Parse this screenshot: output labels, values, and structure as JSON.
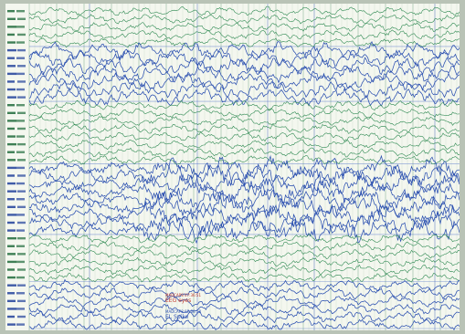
{
  "recording": {
    "colors": {
      "paper": "#f4f7ef",
      "green_trace": "#2f8a52",
      "blue_trace": "#2a4fb0",
      "grid_minor": "#cfe0cf",
      "grid_major": "#9fbfa8",
      "label_green": "#1d6a3a",
      "label_blue": "#1e3f9a",
      "annotation_red": "#c23a2c",
      "annotation_blue": "#2a4fb0"
    },
    "groups": [
      {
        "color": "green",
        "count": 5
      },
      {
        "color": "blue",
        "count": 7
      },
      {
        "color": "green",
        "count": 8
      },
      {
        "color": "blue",
        "count": 9
      },
      {
        "color": "green",
        "count": 6
      },
      {
        "color": "blue",
        "count": 6
      }
    ],
    "annotations": [
      {
        "small": "MADCAP8 07:36:51",
        "label": "EEG eyes",
        "color": "red"
      },
      {
        "small": "MADCAP8 07:36:58",
        "label": "EL Spike",
        "color": "blue"
      }
    ]
  }
}
